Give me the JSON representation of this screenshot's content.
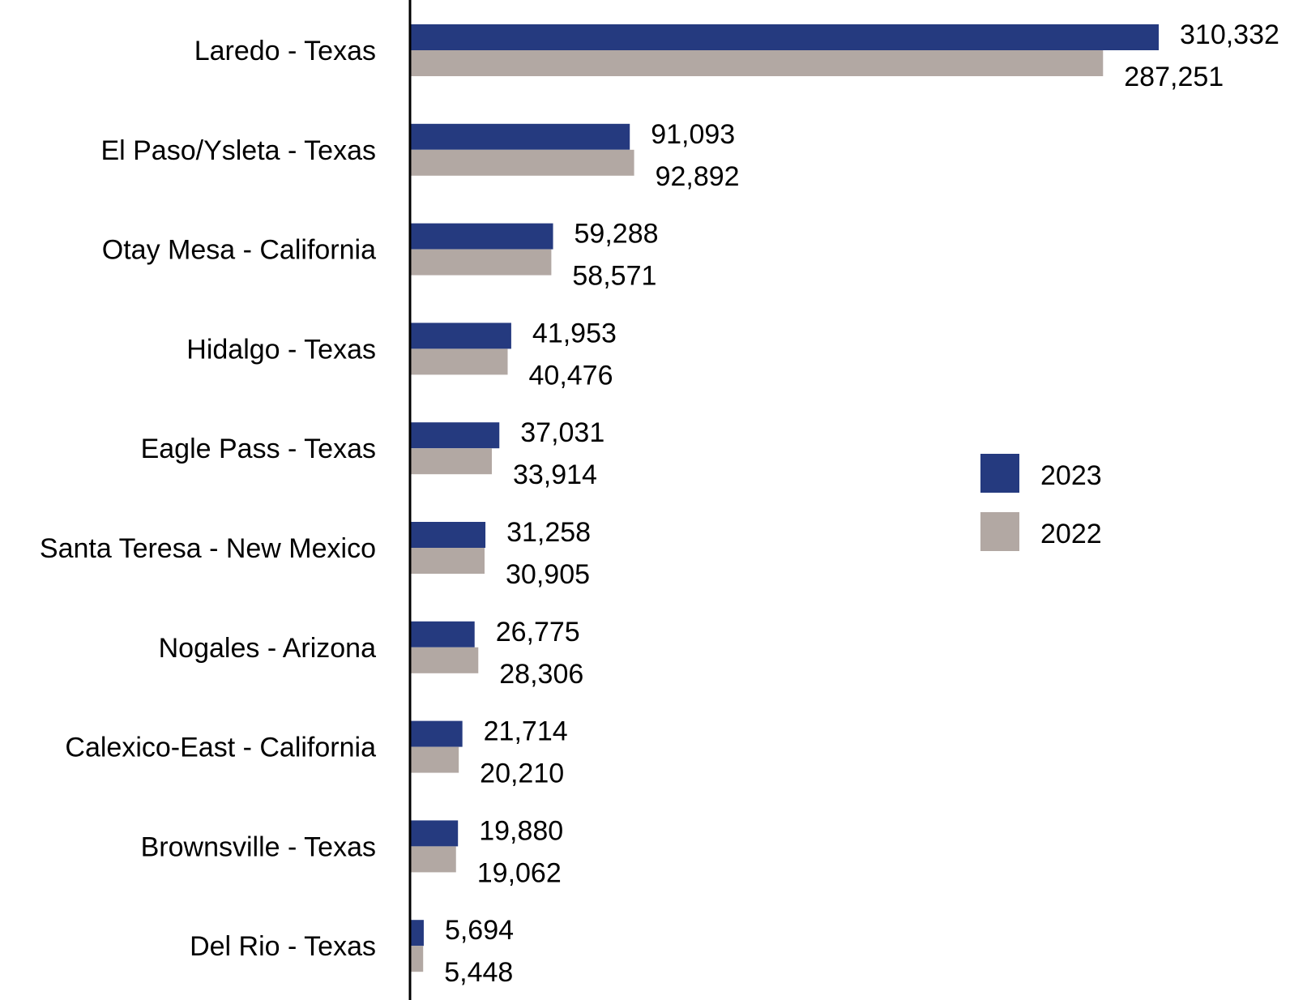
{
  "chart_data": {
    "type": "bar",
    "orientation": "horizontal",
    "categories": [
      "Laredo - Texas",
      "El Paso/Ysleta - Texas",
      "Otay Mesa - California",
      "Hidalgo - Texas",
      "Eagle Pass - Texas",
      "Santa Teresa - New Mexico",
      "Nogales - Arizona",
      "Calexico-East - California",
      "Brownsville - Texas",
      "Del Rio - Texas"
    ],
    "series": [
      {
        "name": "2023",
        "color": "#253a7f",
        "values": [
          310332,
          91093,
          59288,
          41953,
          37031,
          31258,
          26775,
          21714,
          19880,
          5694
        ],
        "labels": [
          "310,332",
          "91,093",
          "59,288",
          "41,953",
          "37,031",
          "31,258",
          "26,775",
          "21,714",
          "19,880",
          "5,694"
        ]
      },
      {
        "name": "2022",
        "color": "#b2a8a3",
        "values": [
          287251,
          92892,
          58571,
          40476,
          33914,
          30905,
          28306,
          20210,
          19062,
          5448
        ],
        "labels": [
          "287,251",
          "92,892",
          "58,571",
          "40,476",
          "33,914",
          "30,905",
          "28,306",
          "20,210",
          "19,062",
          "5,448"
        ]
      }
    ],
    "title": "",
    "xlabel": "",
    "ylabel": "",
    "grid": false,
    "legend_position": "right"
  }
}
